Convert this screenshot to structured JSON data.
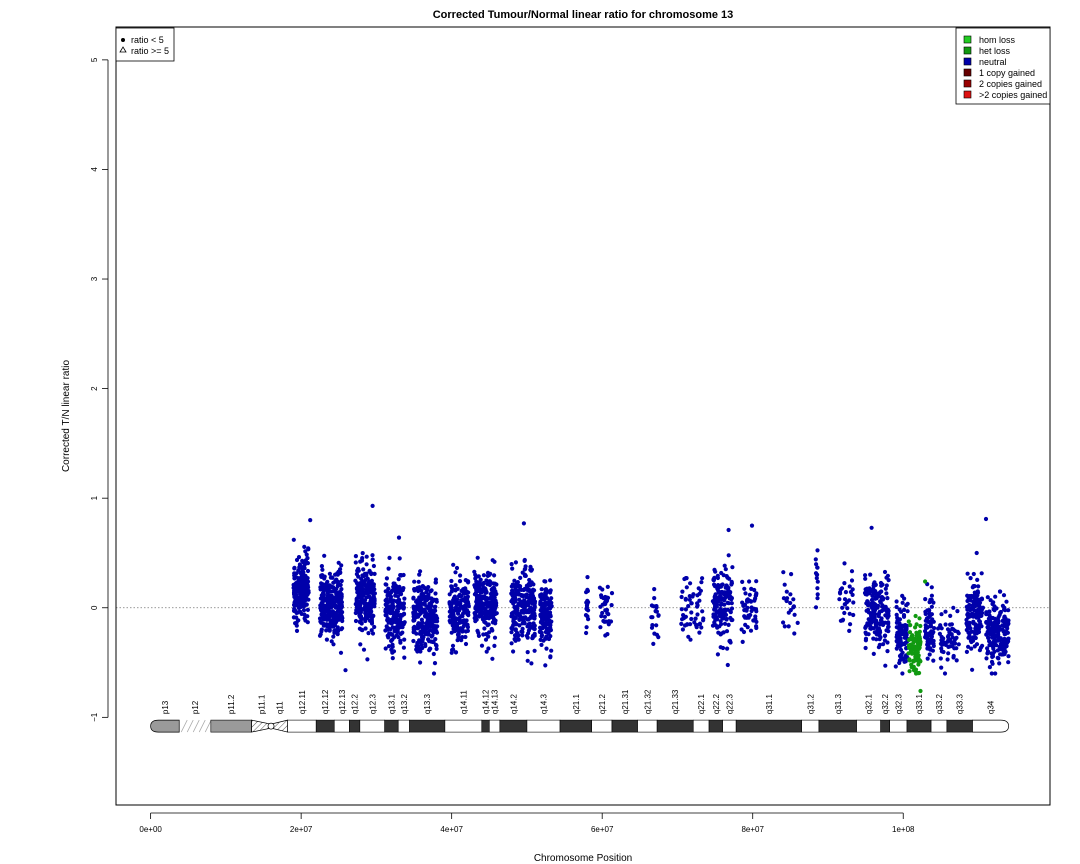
{
  "chart_data": {
    "type": "scatter",
    "title": "Corrected Tumour/Normal linear ratio for chromosome  13",
    "xlabel": "Chromosome Position",
    "ylabel": "Corrected T/N linear ratio",
    "xlim": [
      -4600000,
      119500000
    ],
    "ylim": [
      -1.8,
      5.3
    ],
    "x_ticks": [
      0,
      20000000,
      40000000,
      60000000,
      80000000,
      100000000
    ],
    "x_tick_labels": [
      "0e+00",
      "2e+07",
      "4e+07",
      "6e+07",
      "8e+07",
      "1e+08"
    ],
    "y_ticks": [
      -1,
      0,
      1,
      2,
      3,
      4,
      5
    ],
    "y_tick_labels": [
      "−1",
      "0",
      "1",
      "2",
      "3",
      "4",
      "5"
    ],
    "reference_line": 0,
    "shape_legend": {
      "position": "top-left",
      "entries": [
        {
          "label": "ratio < 5",
          "symbol": "dot"
        },
        {
          "label": "ratio >= 5",
          "symbol": "triangle"
        }
      ]
    },
    "color_legend": {
      "position": "top-right",
      "entries": [
        {
          "label": "hom loss",
          "color": "#22cc22"
        },
        {
          "label": "het loss",
          "color": "#119911"
        },
        {
          "label": "neutral",
          "color": "#0000aa"
        },
        {
          "label": "1 copy gained",
          "color": "#660000"
        },
        {
          "label": "2 copies gained",
          "color": "#990000"
        },
        {
          "label": ">2 copies gained",
          "color": "#dd1111"
        }
      ]
    },
    "series": [
      {
        "name": "neutral",
        "color": "#0000aa",
        "clusters": [
          {
            "x": 20000000,
            "w": 2000000,
            "mean": 0.15,
            "sd": 0.16,
            "n": 200
          },
          {
            "x": 24000000,
            "w": 3000000,
            "mean": 0.05,
            "sd": 0.16,
            "n": 260
          },
          {
            "x": 28500000,
            "w": 2600000,
            "mean": 0.08,
            "sd": 0.16,
            "n": 230
          },
          {
            "x": 32500000,
            "w": 2600000,
            "mean": -0.03,
            "sd": 0.16,
            "n": 200
          },
          {
            "x": 36500000,
            "w": 3200000,
            "mean": -0.1,
            "sd": 0.17,
            "n": 250
          },
          {
            "x": 41000000,
            "w": 2600000,
            "mean": -0.02,
            "sd": 0.16,
            "n": 170
          },
          {
            "x": 44500000,
            "w": 3000000,
            "mean": 0.05,
            "sd": 0.16,
            "n": 220
          },
          {
            "x": 49500000,
            "w": 3200000,
            "mean": 0.0,
            "sd": 0.16,
            "n": 240
          },
          {
            "x": 52500000,
            "w": 1600000,
            "mean": -0.05,
            "sd": 0.16,
            "n": 130
          },
          {
            "x": 58000000,
            "w": 300000,
            "mean": 0.0,
            "sd": 0.13,
            "n": 18
          },
          {
            "x": 60500000,
            "w": 1600000,
            "mean": -0.02,
            "sd": 0.13,
            "n": 35
          },
          {
            "x": 67000000,
            "w": 1000000,
            "mean": -0.1,
            "sd": 0.12,
            "n": 20
          },
          {
            "x": 72000000,
            "w": 3000000,
            "mean": 0.0,
            "sd": 0.15,
            "n": 55
          },
          {
            "x": 76000000,
            "w": 2600000,
            "mean": 0.05,
            "sd": 0.16,
            "n": 150
          },
          {
            "x": 79500000,
            "w": 2000000,
            "mean": -0.02,
            "sd": 0.13,
            "n": 50
          },
          {
            "x": 85000000,
            "w": 2000000,
            "mean": 0.05,
            "sd": 0.12,
            "n": 22
          },
          {
            "x": 88500000,
            "w": 300000,
            "mean": 0.3,
            "sd": 0.14,
            "n": 14
          },
          {
            "x": 92500000,
            "w": 2000000,
            "mean": 0.05,
            "sd": 0.13,
            "n": 30
          },
          {
            "x": 96500000,
            "w": 3200000,
            "mean": -0.05,
            "sd": 0.17,
            "n": 180
          },
          {
            "x": 99800000,
            "w": 1600000,
            "mean": -0.25,
            "sd": 0.14,
            "n": 100
          },
          {
            "x": 103500000,
            "w": 1200000,
            "mean": -0.2,
            "sd": 0.15,
            "n": 80
          },
          {
            "x": 106000000,
            "w": 2800000,
            "mean": -0.28,
            "sd": 0.12,
            "n": 60
          },
          {
            "x": 109500000,
            "w": 2200000,
            "mean": -0.05,
            "sd": 0.18,
            "n": 150
          },
          {
            "x": 112500000,
            "w": 3000000,
            "mean": -0.22,
            "sd": 0.14,
            "n": 200
          }
        ],
        "highlights": [
          {
            "x": 21200000,
            "y": 0.8
          },
          {
            "x": 29500000,
            "y": 0.93
          },
          {
            "x": 33000000,
            "y": 0.64
          },
          {
            "x": 49600000,
            "y": 0.77
          },
          {
            "x": 76800000,
            "y": 0.71
          },
          {
            "x": 79900000,
            "y": 0.75
          },
          {
            "x": 95800000,
            "y": 0.73
          },
          {
            "x": 111000000,
            "y": 0.81
          },
          {
            "x": 25900000,
            "y": -0.57
          },
          {
            "x": 35800000,
            "y": -0.5
          }
        ]
      },
      {
        "name": "het loss",
        "color": "#119911",
        "clusters": [
          {
            "x": 101500000,
            "w": 1600000,
            "mean": -0.35,
            "sd": 0.13,
            "n": 90
          }
        ],
        "highlights": [
          {
            "x": 102900000,
            "y": 0.24
          },
          {
            "x": 102300000,
            "y": -0.76
          }
        ]
      }
    ],
    "ideogram": {
      "y": -1.08,
      "bands": [
        {
          "name": "p13",
          "start": 0,
          "end": 3800000,
          "stain": "gvar"
        },
        {
          "name": "p12",
          "start": 3800000,
          "end": 8000000,
          "stain": "stalk"
        },
        {
          "name": "p11.2",
          "start": 8000000,
          "end": 13400000,
          "stain": "gvar"
        },
        {
          "name": "p11.1",
          "start": 13400000,
          "end": 16000000,
          "stain": "acen"
        },
        {
          "name": "q11",
          "start": 16000000,
          "end": 18200000,
          "stain": "acen"
        },
        {
          "name": "q12.11",
          "start": 18200000,
          "end": 22000000,
          "stain": "gneg"
        },
        {
          "name": "q12.12",
          "start": 22000000,
          "end": 24400000,
          "stain": "gpos"
        },
        {
          "name": "q12.13",
          "start": 24400000,
          "end": 26400000,
          "stain": "gneg"
        },
        {
          "name": "q12.2",
          "start": 26400000,
          "end": 27800000,
          "stain": "gpos"
        },
        {
          "name": "q12.3",
          "start": 27800000,
          "end": 31100000,
          "stain": "gneg"
        },
        {
          "name": "q13.1",
          "start": 31100000,
          "end": 32900000,
          "stain": "gpos"
        },
        {
          "name": "q13.2",
          "start": 32900000,
          "end": 34400000,
          "stain": "gneg"
        },
        {
          "name": "q13.3",
          "start": 34400000,
          "end": 39100000,
          "stain": "gpos"
        },
        {
          "name": "q14.11",
          "start": 39100000,
          "end": 44000000,
          "stain": "gneg"
        },
        {
          "name": "q14.12",
          "start": 44000000,
          "end": 45000000,
          "stain": "gpos"
        },
        {
          "name": "q14.13",
          "start": 45000000,
          "end": 46400000,
          "stain": "gneg"
        },
        {
          "name": "q14.2",
          "start": 46400000,
          "end": 50000000,
          "stain": "gpos"
        },
        {
          "name": "q14.3",
          "start": 50000000,
          "end": 54400000,
          "stain": "gneg"
        },
        {
          "name": "q21.1",
          "start": 54400000,
          "end": 58600000,
          "stain": "gpos"
        },
        {
          "name": "q21.2",
          "start": 58600000,
          "end": 61300000,
          "stain": "gneg"
        },
        {
          "name": "q21.31",
          "start": 61300000,
          "end": 64700000,
          "stain": "gpos"
        },
        {
          "name": "q21.32",
          "start": 64700000,
          "end": 67300000,
          "stain": "gneg"
        },
        {
          "name": "q21.33",
          "start": 67300000,
          "end": 72100000,
          "stain": "gpos"
        },
        {
          "name": "q22.1",
          "start": 72100000,
          "end": 74200000,
          "stain": "gneg"
        },
        {
          "name": "q22.2",
          "start": 74200000,
          "end": 76000000,
          "stain": "gpos"
        },
        {
          "name": "q22.3",
          "start": 76000000,
          "end": 77800000,
          "stain": "gneg"
        },
        {
          "name": "q31.1",
          "start": 77800000,
          "end": 86500000,
          "stain": "gpos"
        },
        {
          "name": "q31.2",
          "start": 86500000,
          "end": 88800000,
          "stain": "gneg"
        },
        {
          "name": "q31.3",
          "start": 88800000,
          "end": 93800000,
          "stain": "gpos"
        },
        {
          "name": "q32.1",
          "start": 93800000,
          "end": 97000000,
          "stain": "gneg"
        },
        {
          "name": "q32.2",
          "start": 97000000,
          "end": 98200000,
          "stain": "gpos"
        },
        {
          "name": "q32.3",
          "start": 98200000,
          "end": 100500000,
          "stain": "gneg"
        },
        {
          "name": "q33.1",
          "start": 100500000,
          "end": 103700000,
          "stain": "gpos"
        },
        {
          "name": "q33.2",
          "start": 103700000,
          "end": 105800000,
          "stain": "gneg"
        },
        {
          "name": "q33.3",
          "start": 105800000,
          "end": 109200000,
          "stain": "gpos"
        },
        {
          "name": "q34",
          "start": 109200000,
          "end": 114000000,
          "stain": "gneg"
        }
      ]
    }
  }
}
